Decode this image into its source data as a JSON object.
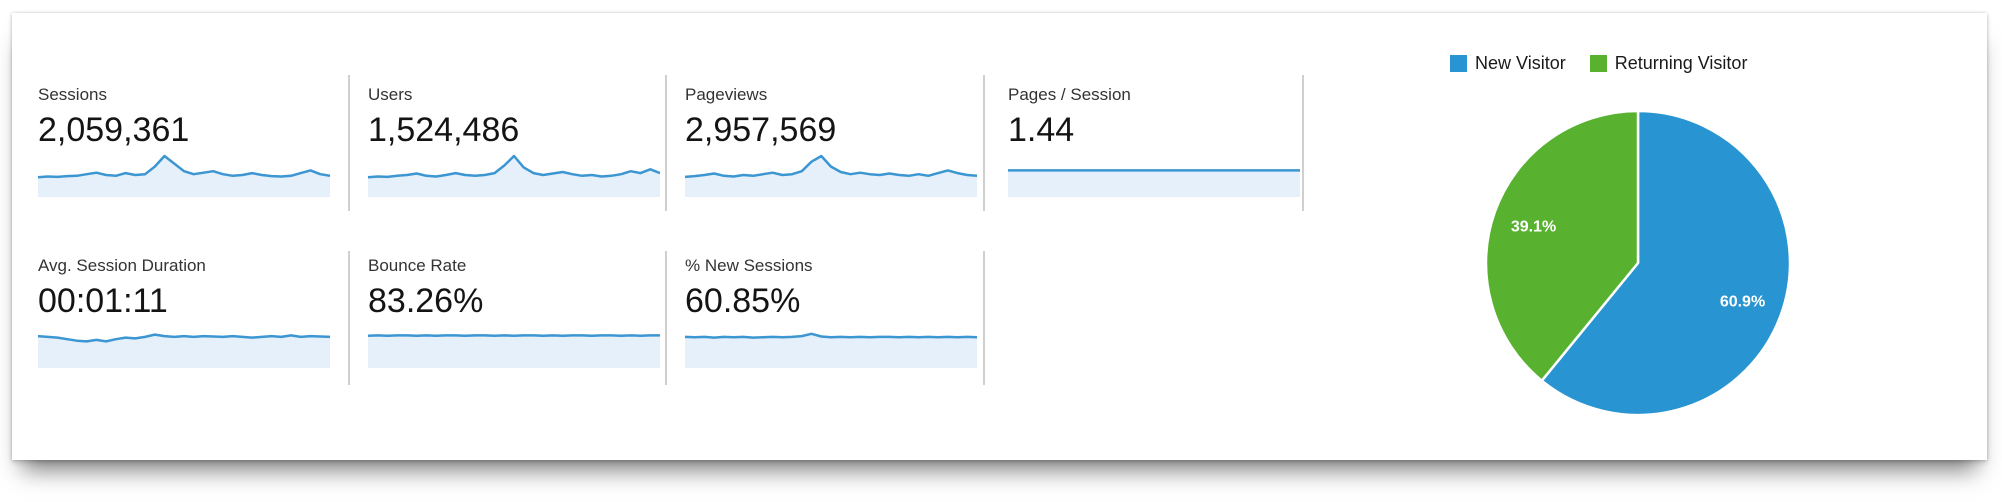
{
  "colors": {
    "spark_line": "#3c96d2",
    "spark_fill": "#e5f0fa",
    "divider": "#cfcfcf",
    "label_text": "#333333",
    "value_text": "#141414",
    "new_visitor_blue": "#2894d1",
    "returning_visitor_green": "#58b230"
  },
  "metrics": [
    {
      "label": "Sessions",
      "value": "2,059,361",
      "sparkline": [
        0.44,
        0.46,
        0.45,
        0.47,
        0.48,
        0.52,
        0.56,
        0.5,
        0.48,
        0.55,
        0.5,
        0.52,
        0.72,
        1.0,
        0.8,
        0.6,
        0.52,
        0.56,
        0.6,
        0.52,
        0.48,
        0.5,
        0.55,
        0.5,
        0.47,
        0.46,
        0.48,
        0.55,
        0.62,
        0.52,
        0.48
      ]
    },
    {
      "label": "Users",
      "value": "1,524,486",
      "sparkline": [
        0.44,
        0.46,
        0.45,
        0.48,
        0.5,
        0.54,
        0.48,
        0.46,
        0.5,
        0.55,
        0.5,
        0.48,
        0.5,
        0.55,
        0.75,
        1.0,
        0.7,
        0.55,
        0.5,
        0.54,
        0.58,
        0.52,
        0.48,
        0.5,
        0.46,
        0.48,
        0.52,
        0.6,
        0.55,
        0.65,
        0.55
      ]
    },
    {
      "label": "Pageviews",
      "value": "2,957,569",
      "sparkline": [
        0.45,
        0.47,
        0.5,
        0.54,
        0.48,
        0.46,
        0.5,
        0.48,
        0.52,
        0.56,
        0.5,
        0.52,
        0.6,
        0.85,
        1.0,
        0.72,
        0.58,
        0.52,
        0.56,
        0.52,
        0.5,
        0.54,
        0.5,
        0.48,
        0.52,
        0.48,
        0.55,
        0.62,
        0.55,
        0.5,
        0.48
      ]
    },
    {
      "label": "Pages / Session",
      "value": "1.44",
      "sparkline": [
        0.62,
        0.62,
        0.62,
        0.62,
        0.62,
        0.62,
        0.62,
        0.62,
        0.62,
        0.62,
        0.62,
        0.62,
        0.62,
        0.62,
        0.62,
        0.62,
        0.62,
        0.62,
        0.62,
        0.62,
        0.62,
        0.62,
        0.62,
        0.62,
        0.62,
        0.62,
        0.62,
        0.62,
        0.62,
        0.62,
        0.62
      ]
    },
    {
      "label": "Avg. Session Duration",
      "value": "00:01:11",
      "sparkline": [
        0.76,
        0.74,
        0.72,
        0.68,
        0.64,
        0.62,
        0.66,
        0.62,
        0.68,
        0.72,
        0.7,
        0.74,
        0.8,
        0.76,
        0.74,
        0.76,
        0.74,
        0.76,
        0.75,
        0.74,
        0.76,
        0.74,
        0.72,
        0.74,
        0.76,
        0.74,
        0.78,
        0.74,
        0.76,
        0.75,
        0.74
      ]
    },
    {
      "label": "Bounce Rate",
      "value": "83.26%",
      "sparkline": [
        0.77,
        0.78,
        0.77,
        0.78,
        0.78,
        0.77,
        0.78,
        0.77,
        0.78,
        0.78,
        0.77,
        0.78,
        0.78,
        0.77,
        0.78,
        0.77,
        0.78,
        0.78,
        0.77,
        0.78,
        0.77,
        0.78,
        0.78,
        0.77,
        0.78,
        0.78,
        0.77,
        0.78,
        0.77,
        0.78,
        0.78
      ]
    },
    {
      "label": "% New Sessions",
      "value": "60.85%",
      "sparkline": [
        0.74,
        0.73,
        0.74,
        0.72,
        0.74,
        0.73,
        0.74,
        0.72,
        0.73,
        0.74,
        0.73,
        0.74,
        0.76,
        0.82,
        0.75,
        0.73,
        0.74,
        0.73,
        0.74,
        0.73,
        0.74,
        0.74,
        0.73,
        0.74,
        0.73,
        0.74,
        0.73,
        0.74,
        0.73,
        0.74,
        0.73
      ]
    }
  ],
  "chart_data": {
    "type": "pie",
    "legend_position": "top",
    "start_angle_deg": 0,
    "direction": "clockwise",
    "slices": [
      {
        "label": "New Visitor",
        "value": 60.9,
        "display": "60.9%",
        "color": "#2894d1"
      },
      {
        "label": "Returning Visitor",
        "value": 39.1,
        "display": "39.1%",
        "color": "#58b230"
      }
    ]
  }
}
